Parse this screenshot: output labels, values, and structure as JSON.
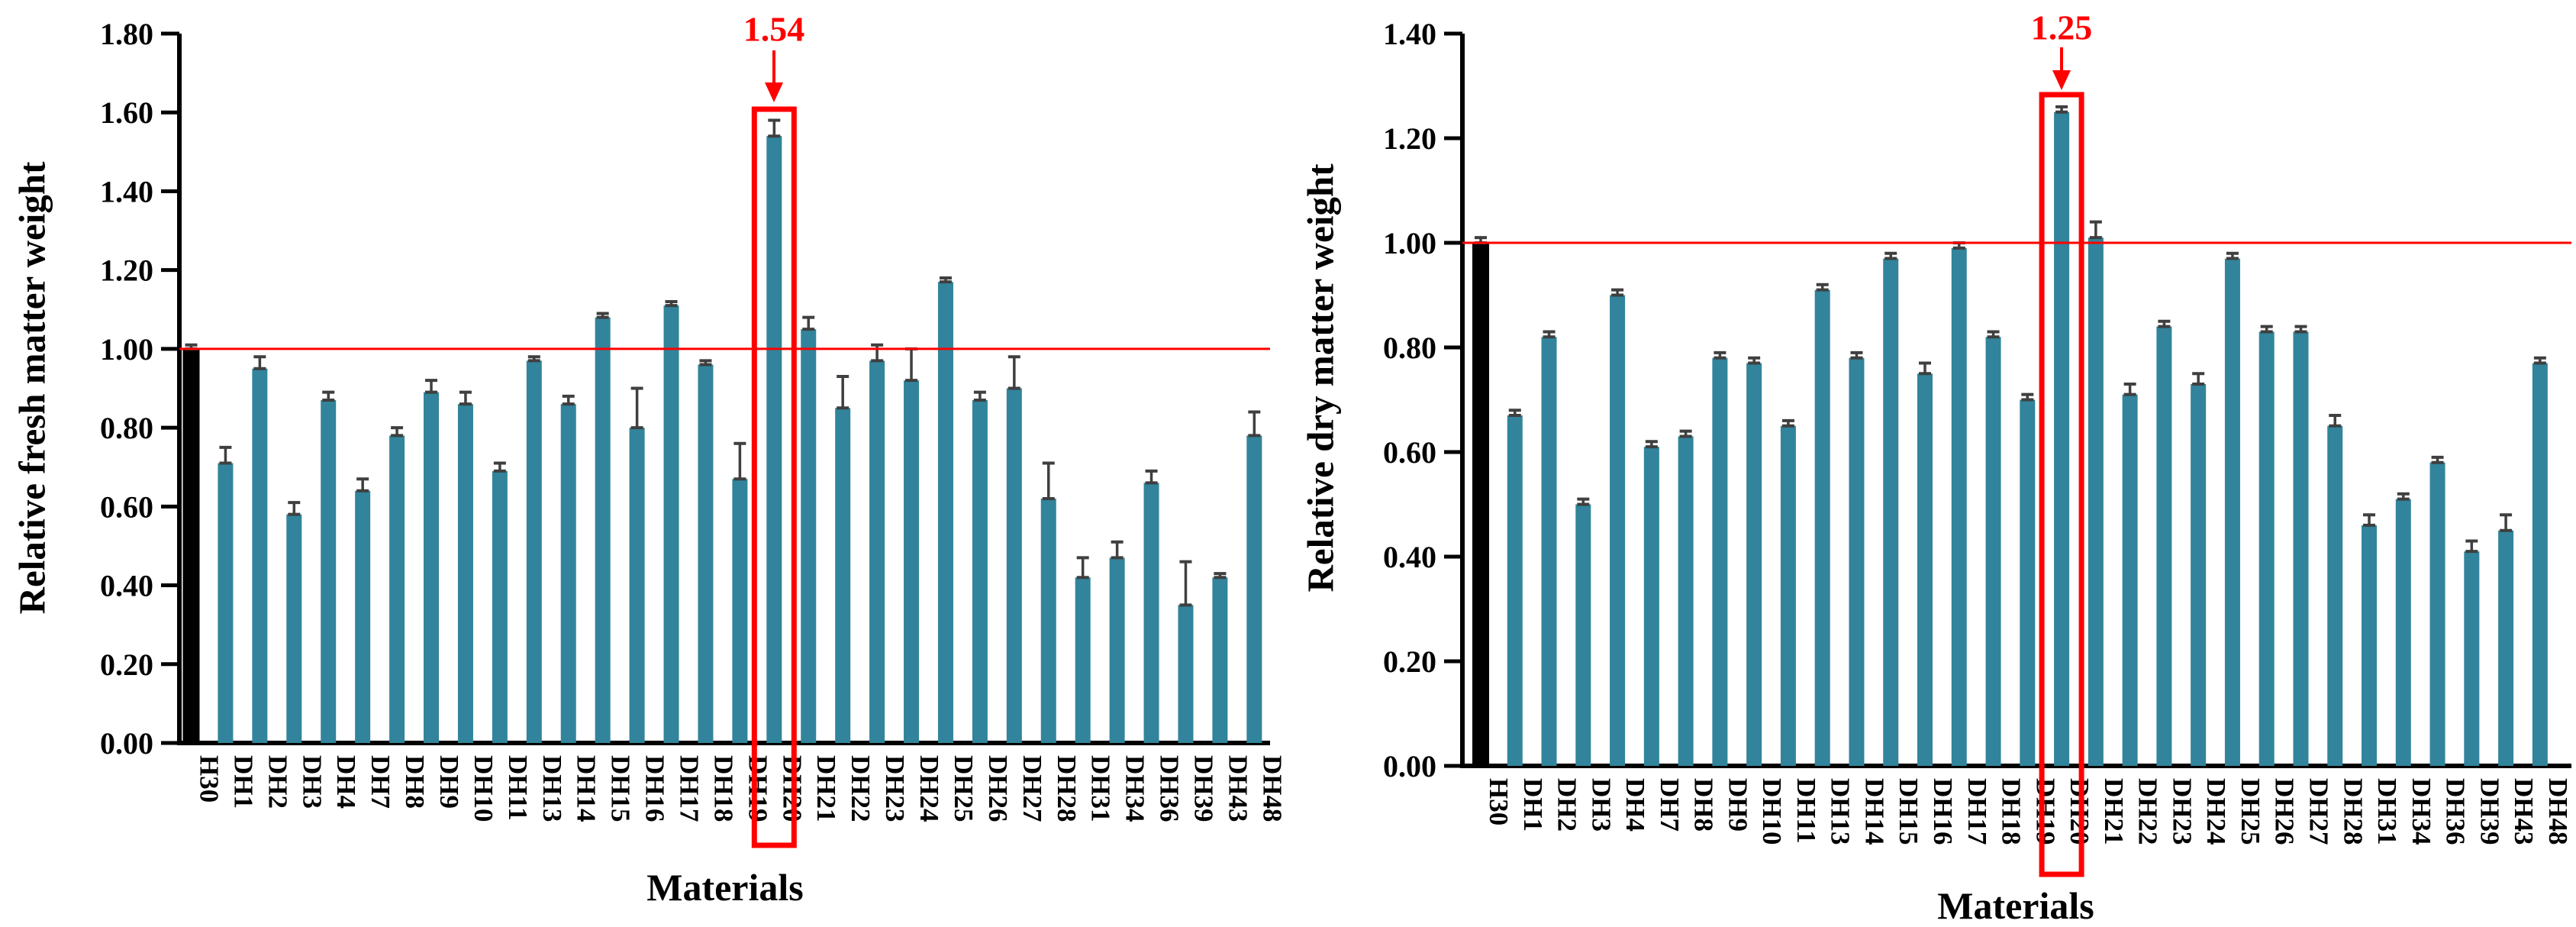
{
  "figure_type": "two-panel bar chart figure",
  "colors": {
    "bar_teal": "#31849B",
    "bar_control": "#000000",
    "error_bar": "#3F3F3F",
    "reference_line": "#FF0000",
    "highlight_red": "#FF0000",
    "axis": "#000000",
    "background": "#FFFFFF"
  },
  "chart_data": [
    {
      "type": "bar",
      "panel": "left",
      "ylabel": "Relative fresh matter weight",
      "xlabel": "Materials",
      "ylim": [
        0.0,
        1.8
      ],
      "ytick_step": 0.2,
      "ytick_labels": [
        "0.00",
        "0.20",
        "0.40",
        "0.60",
        "0.80",
        "1.00",
        "1.20",
        "1.40",
        "1.60",
        "1.80"
      ],
      "grid": false,
      "legend": "none",
      "reference_line_y": 1.0,
      "highlight": {
        "category": "DH20",
        "value_label": "1.54",
        "box_color": "#FF0000"
      },
      "categories": [
        "H30",
        "DH1",
        "DH2",
        "DH3",
        "DH4",
        "DH7",
        "DH8",
        "DH9",
        "DH10",
        "DH11",
        "DH13",
        "DH14",
        "DH15",
        "DH16",
        "DH17",
        "DH18",
        "DH19",
        "DH20",
        "DH21",
        "DH22",
        "DH23",
        "DH24",
        "DH25",
        "DH26",
        "DH27",
        "DH28",
        "DH31",
        "DH34",
        "DH36",
        "DH39",
        "DH43",
        "DH48"
      ],
      "values": [
        1.0,
        0.71,
        0.95,
        0.58,
        0.87,
        0.64,
        0.78,
        0.89,
        0.86,
        0.69,
        0.97,
        0.86,
        1.08,
        0.8,
        1.11,
        0.96,
        0.67,
        1.54,
        1.05,
        0.85,
        0.97,
        0.92,
        1.17,
        0.87,
        0.9,
        0.62,
        0.42,
        0.47,
        0.66,
        0.35,
        0.42,
        0.78
      ],
      "errors": [
        0.01,
        0.04,
        0.03,
        0.03,
        0.02,
        0.03,
        0.02,
        0.03,
        0.03,
        0.02,
        0.01,
        0.02,
        0.01,
        0.1,
        0.01,
        0.01,
        0.09,
        0.04,
        0.03,
        0.08,
        0.04,
        0.08,
        0.01,
        0.02,
        0.08,
        0.09,
        0.05,
        0.04,
        0.03,
        0.11,
        0.01,
        0.06
      ],
      "bar_color_first": "#000000",
      "bar_color_rest": "#31849B"
    },
    {
      "type": "bar",
      "panel": "right",
      "ylabel": "Relative dry matter weight",
      "xlabel": "Materials",
      "ylim": [
        0.0,
        1.4
      ],
      "ytick_step": 0.2,
      "ytick_labels": [
        "0.00",
        "0.20",
        "0.40",
        "0.60",
        "0.80",
        "1.00",
        "1.20",
        "1.40"
      ],
      "grid": false,
      "legend": "none",
      "reference_line_y": 1.0,
      "highlight": {
        "category": "DH20",
        "value_label": "1.25",
        "box_color": "#FF0000"
      },
      "categories": [
        "H30",
        "DH1",
        "DH2",
        "DH3",
        "DH4",
        "DH7",
        "DH8",
        "DH9",
        "DH10",
        "DH11",
        "DH13",
        "DH14",
        "DH15",
        "DH16",
        "DH17",
        "DH18",
        "DH19",
        "DH20",
        "DH21",
        "DH22",
        "DH23",
        "DH24",
        "DH25",
        "DH26",
        "DH27",
        "DH28",
        "DH31",
        "DH34",
        "DH36",
        "DH39",
        "DH43",
        "DH48"
      ],
      "values": [
        1.0,
        0.67,
        0.82,
        0.5,
        0.9,
        0.61,
        0.63,
        0.78,
        0.77,
        0.65,
        0.91,
        0.78,
        0.97,
        0.75,
        0.99,
        0.82,
        0.7,
        1.25,
        1.01,
        0.71,
        0.84,
        0.73,
        0.97,
        0.83,
        0.83,
        0.65,
        0.46,
        0.51,
        0.58,
        0.41,
        0.45,
        0.77
      ],
      "errors": [
        0.01,
        0.01,
        0.01,
        0.01,
        0.01,
        0.01,
        0.01,
        0.01,
        0.01,
        0.01,
        0.01,
        0.01,
        0.01,
        0.02,
        0.01,
        0.01,
        0.01,
        0.01,
        0.03,
        0.02,
        0.01,
        0.02,
        0.01,
        0.01,
        0.01,
        0.02,
        0.02,
        0.01,
        0.01,
        0.02,
        0.03,
        0.01
      ],
      "bar_color_first": "#000000",
      "bar_color_rest": "#31849B"
    }
  ]
}
